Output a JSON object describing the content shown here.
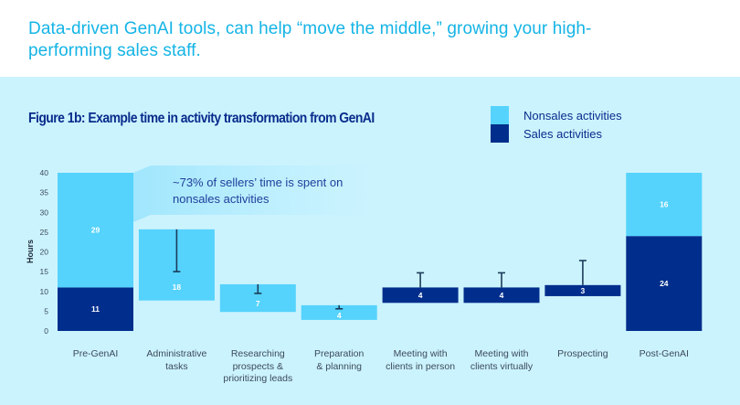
{
  "headline": "Data-driven GenAI tools, can help “move the middle,” growing your high-performing sales staff.",
  "colors": {
    "headline": "#14b4e6",
    "panel_bg": "#cbf3fe",
    "nonsales": "#55d3fc",
    "sales": "#012e8c",
    "title": "#0a2d8c",
    "error_bar": "#1c3b5a"
  },
  "chart_data": {
    "type": "bar",
    "subtype": "waterfall",
    "title": "Figure 1b: Example time in activity transformation from GenAI",
    "ylabel": "Hours",
    "xlabel": "",
    "ylim": [
      0,
      40
    ],
    "yticks": [
      0,
      5,
      10,
      15,
      20,
      25,
      30,
      35,
      40
    ],
    "grid": false,
    "legend": {
      "placement": "top-right",
      "entries": [
        {
          "name": "Nonsales activities",
          "color": "#55d3fc"
        },
        {
          "name": "Sales activities",
          "color": "#012e8c"
        }
      ]
    },
    "annotation": "~73% of sellers’ time is spent on nonsales activities",
    "categories": [
      "Pre-GenAI",
      "Administrative tasks",
      "Researching prospects & prioritizing leads",
      "Preparation & planning",
      "Meeting with clients in person",
      "Meeting with clients virtually",
      "Prospecting",
      "Post-GenAI"
    ],
    "category_lines": [
      [
        "Pre-GenAI"
      ],
      [
        "Administrative",
        "tasks"
      ],
      [
        "Researching",
        "prospects &",
        "prioritizing leads"
      ],
      [
        "Preparation",
        "& planning"
      ],
      [
        "Meeting with",
        "clients in person"
      ],
      [
        "Meeting with",
        "clients virtually"
      ],
      [
        "Prospecting"
      ],
      [
        "Post-GenAI"
      ]
    ],
    "bars": [
      {
        "category": "Pre-GenAI",
        "kind": "stacked",
        "segments": [
          {
            "series": "Sales activities",
            "from": 0,
            "to": 11,
            "label": "11"
          },
          {
            "series": "Nonsales activities",
            "from": 11,
            "to": 40,
            "label": "29"
          }
        ]
      },
      {
        "category": "Administrative tasks",
        "kind": "floating",
        "series": "Nonsales activities",
        "from": 7.7,
        "to": 25.7,
        "label": "18",
        "error_to": 15
      },
      {
        "category": "Researching prospects & prioritizing leads",
        "kind": "floating",
        "series": "Nonsales activities",
        "from": 4.8,
        "to": 11.8,
        "label": "7",
        "error_to": 9.5
      },
      {
        "category": "Preparation & planning",
        "kind": "floating",
        "series": "Nonsales activities",
        "from": 2.8,
        "to": 6.5,
        "label": "4",
        "error_to": 5.6
      },
      {
        "category": "Meeting with clients in person",
        "kind": "floating",
        "series": "Sales activities",
        "from": 7.1,
        "to": 11,
        "label": "4",
        "error_to": 14.7
      },
      {
        "category": "Meeting with clients virtually",
        "kind": "floating",
        "series": "Sales activities",
        "from": 7.1,
        "to": 11,
        "label": "4",
        "error_to": 14.7
      },
      {
        "category": "Prospecting",
        "kind": "floating",
        "series": "Sales activities",
        "from": 8.8,
        "to": 11.6,
        "label": "3",
        "error_to": 17.8
      },
      {
        "category": "Post-GenAI",
        "kind": "stacked",
        "segments": [
          {
            "series": "Sales activities",
            "from": 0,
            "to": 24,
            "label": "24"
          },
          {
            "series": "Nonsales activities",
            "from": 24,
            "to": 40,
            "label": "16"
          }
        ]
      }
    ]
  }
}
